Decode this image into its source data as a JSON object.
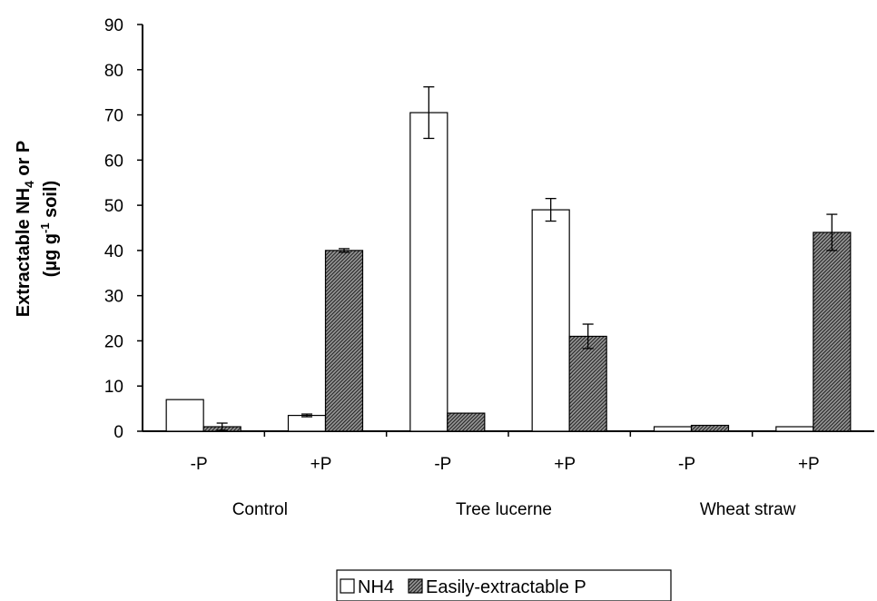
{
  "chart_data": {
    "type": "bar",
    "groups": [
      "Control",
      "Tree lucerne",
      "Wheat straw"
    ],
    "categories": [
      "-P",
      "+P",
      "-P",
      "+P",
      "-P",
      "+P"
    ],
    "series": [
      {
        "name": "NH4",
        "values": [
          7,
          3.5,
          70.5,
          49,
          1,
          1
        ],
        "errors": [
          0,
          0.3,
          5.7,
          2.5,
          0,
          0
        ],
        "color": "#ffffff"
      },
      {
        "name": "Easily-extractable P",
        "values": [
          1,
          40,
          4,
          21,
          1.3,
          44
        ],
        "errors": [
          0.8,
          0.4,
          0,
          2.7,
          0,
          4
        ],
        "color": "#7a7a7a"
      }
    ],
    "ylabel_line1": "Extractable NH",
    "ylabel_sub": "4",
    "ylabel_line1_end": " or P",
    "ylabel_line2_start": "(µg g",
    "ylabel_line2_sup": "-1",
    "ylabel_line2_end": " soil)",
    "xlabel": "",
    "ylim": [
      0,
      90
    ],
    "yticks": [
      0,
      10,
      20,
      30,
      40,
      50,
      60,
      70,
      80,
      90
    ],
    "grid": false,
    "legend": "bottom-center"
  }
}
